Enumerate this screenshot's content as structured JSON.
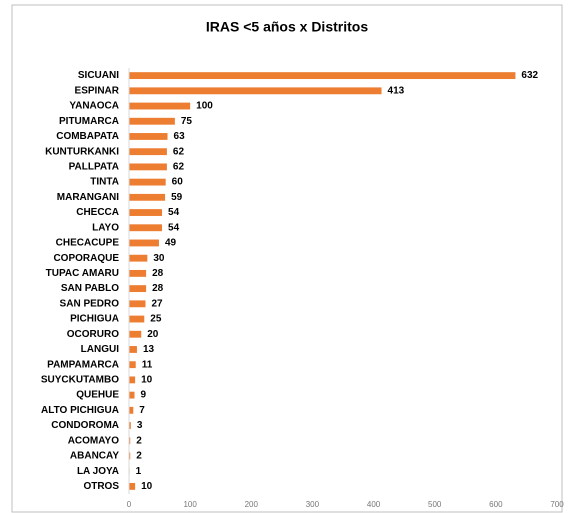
{
  "chart_data": {
    "type": "bar",
    "orientation": "horizontal",
    "title": "IRAS <5 años x Distritos",
    "categories": [
      "SICUANI",
      "ESPINAR",
      "YANAOCA",
      "PITUMARCA",
      "COMBAPATA",
      "KUNTURKANKI",
      "PALLPATA",
      "TINTA",
      "MARANGANI",
      "CHECCA",
      "LAYO",
      "CHECACUPE",
      "COPORAQUE",
      "TUPAC AMARU",
      "SAN PABLO",
      "SAN PEDRO",
      "PICHIGUA",
      "OCORURO",
      "LANGUI",
      "PAMPAMARCA",
      "SUYCKUTAMBO",
      "QUEHUE",
      "ALTO PICHIGUA",
      "CONDOROMA",
      "ACOMAYO",
      "ABANCAY",
      "LA JOYA",
      "OTROS"
    ],
    "values": [
      632,
      413,
      100,
      75,
      63,
      62,
      62,
      60,
      59,
      54,
      54,
      49,
      30,
      28,
      28,
      27,
      25,
      20,
      13,
      11,
      10,
      9,
      7,
      3,
      2,
      2,
      1,
      10
    ],
    "color": "#ed7d31",
    "xlim": [
      0,
      700
    ],
    "xticks": [
      0,
      100,
      200,
      300,
      400,
      500,
      600,
      700
    ],
    "grid": false
  }
}
